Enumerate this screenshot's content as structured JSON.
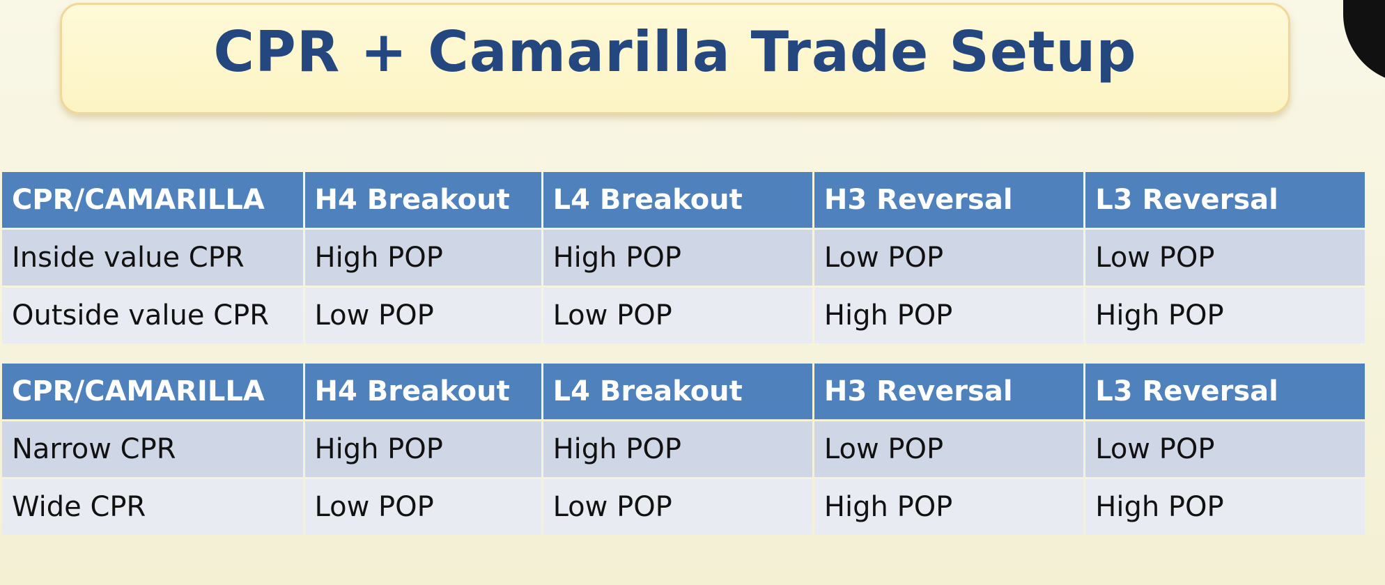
{
  "title": "CPR + Camarilla Trade Setup",
  "tables": [
    {
      "headers": [
        "CPR/CAMARILLA",
        "H4 Breakout",
        "L4 Breakout",
        "H3 Reversal",
        "L3 Reversal"
      ],
      "rows": [
        [
          "Inside value CPR",
          "High POP",
          "High POP",
          "Low POP",
          "Low POP"
        ],
        [
          "Outside value CPR",
          "Low POP",
          "Low POP",
          "High POP",
          "High POP"
        ]
      ]
    },
    {
      "headers": [
        "CPR/CAMARILLA",
        "H4 Breakout",
        "L4 Breakout",
        "H3 Reversal",
        "L3 Reversal"
      ],
      "rows": [
        [
          "Narrow CPR",
          "High POP",
          "High POP",
          "Low POP",
          "Low POP"
        ],
        [
          "Wide CPR",
          "Low POP",
          "Low POP",
          "High POP",
          "High POP"
        ]
      ]
    }
  ],
  "colors": {
    "title_text": "#23477e",
    "header_bg": "#4f81bd",
    "row_dark": "#cfd7e6",
    "row_light": "#e8ebf2"
  }
}
